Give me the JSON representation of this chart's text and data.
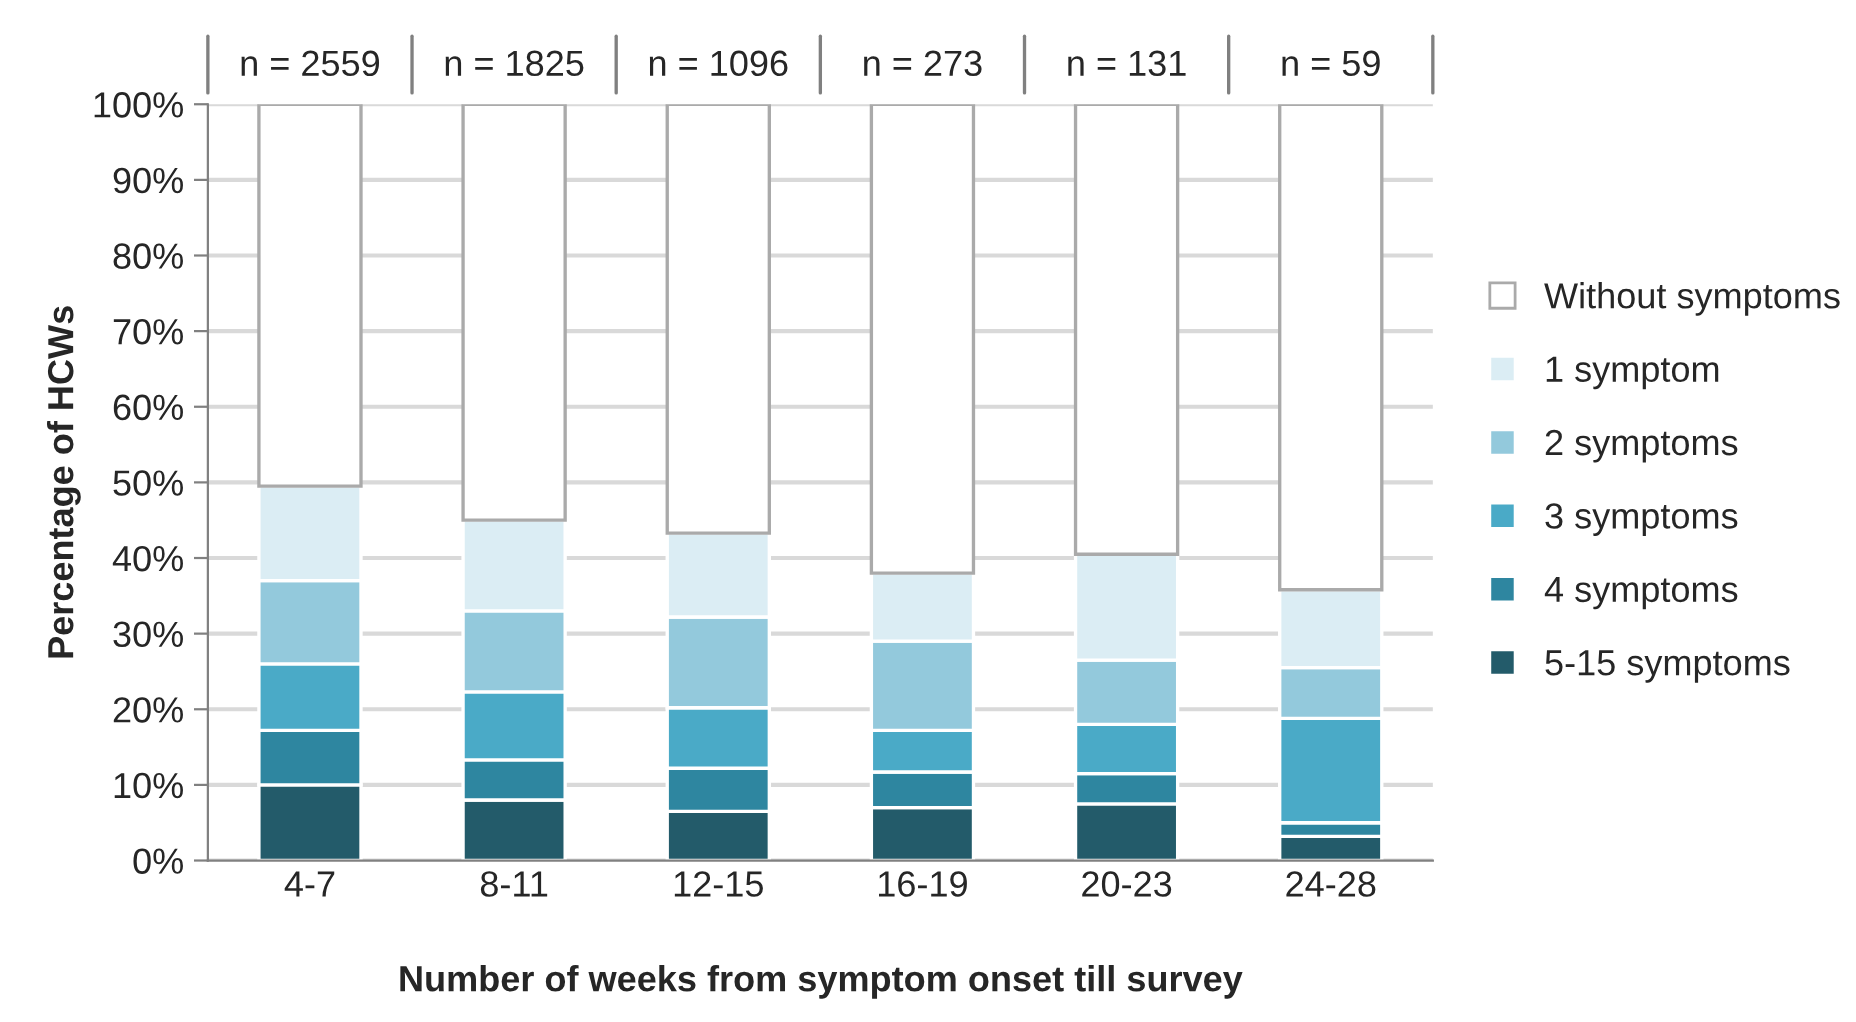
{
  "chart_data": {
    "type": "bar",
    "stacked": true,
    "xlabel": "Number of weeks from symptom onset till survey",
    "ylabel": "Percentage of HCWs",
    "categories": [
      "4-7",
      "8-11",
      "12-15",
      "16-19",
      "20-23",
      "24-28"
    ],
    "series": [
      {
        "name": "5-15 symptoms",
        "color": "#235b6a",
        "values": [
          10,
          8,
          6.5,
          7,
          7.5,
          3.2
        ]
      },
      {
        "name": "4 symptoms",
        "color": "#2e86a0",
        "values": [
          7.2,
          5.3,
          5.7,
          4.7,
          4,
          1.8
        ]
      },
      {
        "name": "3 symptoms",
        "color": "#4aaac7",
        "values": [
          8.8,
          9,
          8,
          5.5,
          6.5,
          13.8
        ]
      },
      {
        "name": "2 symptoms",
        "color": "#93c9dc",
        "values": [
          11,
          10.7,
          12,
          11.8,
          8.5,
          6.7
        ]
      },
      {
        "name": "1 symptom",
        "color": "#dbedf4",
        "values": [
          12.5,
          12,
          11.1,
          9,
          14,
          10.3
        ]
      },
      {
        "name": "Without symptoms",
        "color": "#ffffff",
        "values": [
          50.5,
          55,
          56.7,
          62,
          59.5,
          64.2
        ]
      }
    ],
    "ylim": [
      0,
      100
    ],
    "yticks": [
      {
        "value": 0,
        "label": "0%"
      },
      {
        "value": 10,
        "label": "10%"
      },
      {
        "value": 20,
        "label": "20%"
      },
      {
        "value": 30,
        "label": "30%"
      },
      {
        "value": 40,
        "label": "40%"
      },
      {
        "value": 50,
        "label": "50%"
      },
      {
        "value": 60,
        "label": "60%"
      },
      {
        "value": 70,
        "label": "70%"
      },
      {
        "value": 80,
        "label": "80%"
      },
      {
        "value": 90,
        "label": "90%"
      },
      {
        "value": 100,
        "label": "100%"
      }
    ],
    "grid": "y",
    "legend": "right",
    "annotations": [
      "n = 2559",
      "n = 1825",
      "n = 1096",
      "n = 273",
      "n = 131",
      "n = 59"
    ]
  }
}
